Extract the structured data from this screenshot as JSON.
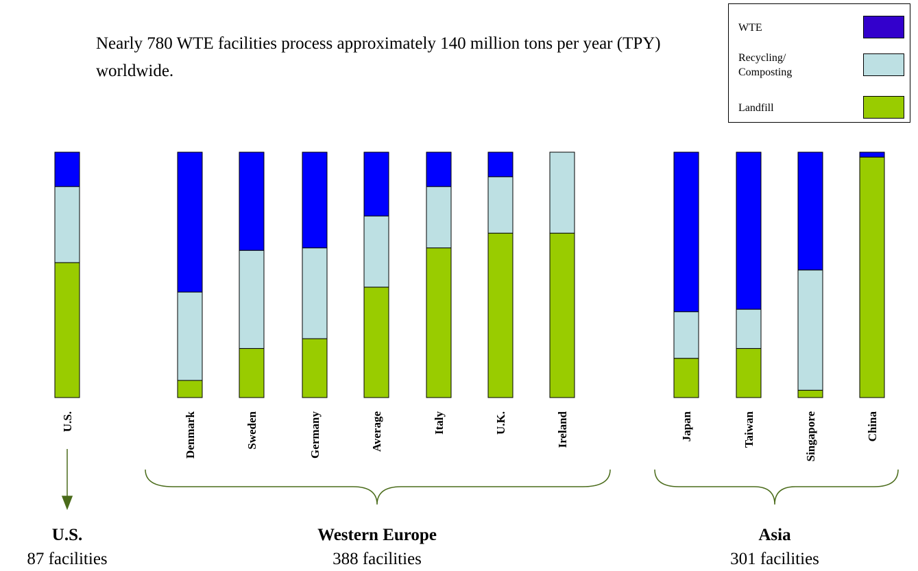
{
  "chart_data": {
    "type": "stacked_bar",
    "title": "Nearly 780 WTE facilities process approximately 140 million tons per year (TPY) worldwide.",
    "categories": [
      "U.S.",
      "Denmark",
      "Sweden",
      "Germany",
      "Average",
      "Italy",
      "U.K.",
      "Ireland",
      "Japan",
      "Taiwan",
      "Singapore",
      "China"
    ],
    "series": [
      {
        "name": "WTE",
        "color": "#0000ff",
        "values": [
          14,
          57,
          40,
          39,
          26,
          14,
          10,
          0,
          65,
          64,
          48,
          2
        ]
      },
      {
        "name": "Recycling/ Composting",
        "color": "#bde0e3",
        "values": [
          31,
          36,
          40,
          37,
          29,
          25,
          23,
          33,
          19,
          16,
          49,
          0
        ]
      },
      {
        "name": "Landfill",
        "color": "#99cc00",
        "values": [
          55,
          7,
          20,
          24,
          45,
          61,
          67,
          67,
          16,
          20,
          3,
          98
        ]
      }
    ],
    "ylim": [
      0,
      100
    ],
    "groups": [
      {
        "name": "U.S.",
        "subtitle": "87 facilities"
      },
      {
        "name": "Western Europe",
        "subtitle": "388 facilities"
      },
      {
        "name": "Asia",
        "subtitle": "301 facilities"
      }
    ]
  }
}
